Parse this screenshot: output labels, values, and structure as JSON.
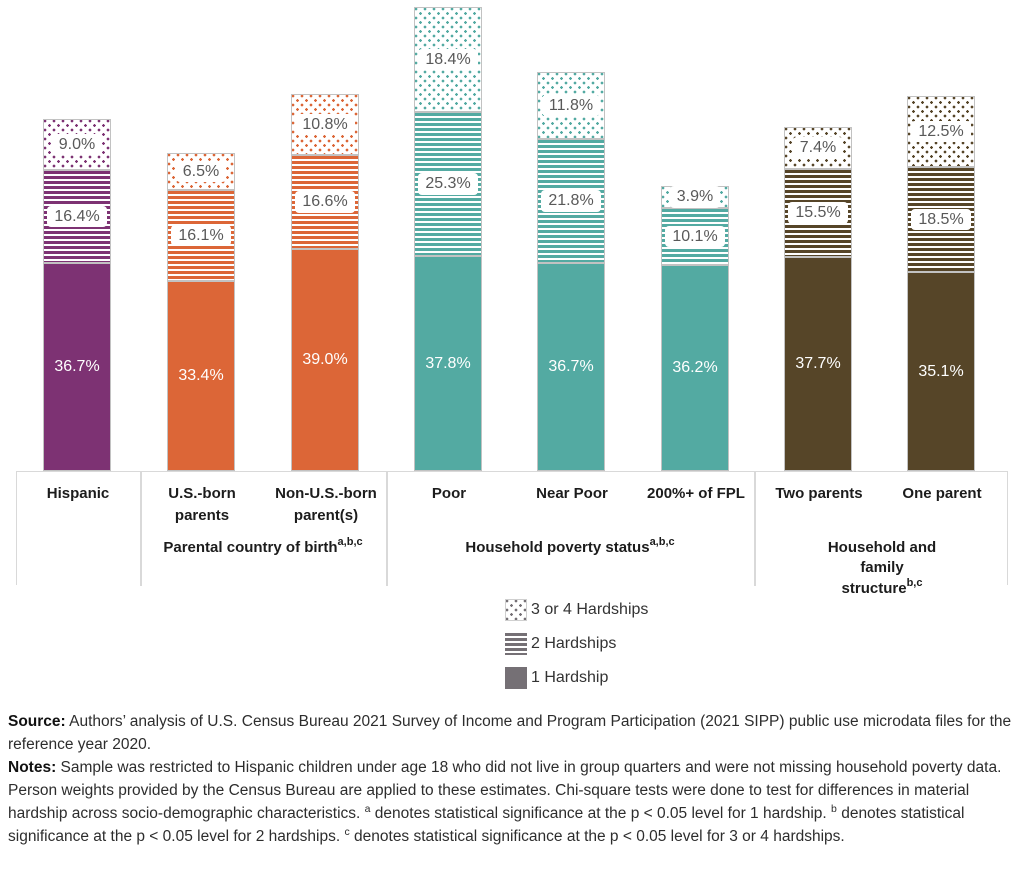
{
  "chart_data": {
    "type": "bar",
    "stacked": true,
    "unit": "%",
    "grid": false,
    "legend_position": "bottom-center",
    "categories": [
      "Hispanic",
      "U.S.-born parents",
      "Non-U.S.-born parent(s)",
      "Poor",
      "Near Poor",
      "200%+ of FPL",
      "Two parents",
      "One parent"
    ],
    "series": [
      {
        "name": "1 Hardship",
        "pattern": "solid",
        "values": [
          36.7,
          33.4,
          39.0,
          37.8,
          36.7,
          36.2,
          37.7,
          35.1
        ]
      },
      {
        "name": "2 Hardships",
        "pattern": "stripes",
        "values": [
          16.4,
          16.1,
          16.6,
          25.3,
          21.8,
          10.1,
          15.5,
          18.5
        ]
      },
      {
        "name": "3 or 4 Hardships",
        "pattern": "dots",
        "values": [
          9.0,
          6.5,
          10.8,
          18.4,
          11.8,
          3.9,
          7.4,
          12.5
        ]
      }
    ],
    "bar_colors": [
      "#7D3273",
      "#DC6637",
      "#DC6637",
      "#53AAA2",
      "#53AAA2",
      "#53AAA2",
      "#564528",
      "#564528"
    ],
    "groups": [
      {
        "label": "",
        "sup": "",
        "categories": [
          "Hispanic"
        ]
      },
      {
        "label": "Parental country of birth",
        "sup": "a,b,c",
        "categories": [
          "U.S.-born parents",
          "Non-U.S.-born parent(s)"
        ]
      },
      {
        "label": "Household poverty status",
        "sup": "a,b,c",
        "categories": [
          "Poor",
          "Near Poor",
          "200%+ of FPL"
        ]
      },
      {
        "label": "Household and family structure",
        "sup": "b,c",
        "categories": [
          "Two parents",
          "One parent"
        ]
      }
    ],
    "legend": [
      {
        "label": "3 or 4 Hardships",
        "pattern": "dots"
      },
      {
        "label": "2 Hardships",
        "pattern": "stripes"
      },
      {
        "label": "1 Hardship",
        "pattern": "solid"
      }
    ],
    "legend_swatch_color": "#757075",
    "ylim": [
      0,
      85
    ]
  },
  "footer": {
    "paragraphs": [
      {
        "lead": "Source:",
        "segments": [
          {
            "t": "text",
            "v": " Authors’ analysis of U.S. Census Bureau 2021 Survey of Income and Program Participation (2021 SIPP) public use microdata files for the reference year 2020."
          }
        ]
      },
      {
        "lead": "Notes:",
        "segments": [
          {
            "t": "text",
            "v": " Sample was restricted to Hispanic children under age 18 who did not live in group quarters and were not missing household poverty data. Person weights provided by the Census Bureau are applied to these estimates. Chi-square tests were done to test for differences in material hardship across socio-demographic characteristics. "
          },
          {
            "t": "sup",
            "v": "a"
          },
          {
            "t": "text",
            "v": " denotes statistical significance at the p < 0.05 level for 1 hardship. "
          },
          {
            "t": "sup",
            "v": "b"
          },
          {
            "t": "text",
            "v": " denotes statistical significance at the p < 0.05 level for 2 hardships. "
          },
          {
            "t": "sup",
            "v": "c"
          },
          {
            "t": "text",
            "v": " denotes statistical significance at the p < 0.05 level for 3 or 4 hardships."
          }
        ]
      }
    ]
  }
}
